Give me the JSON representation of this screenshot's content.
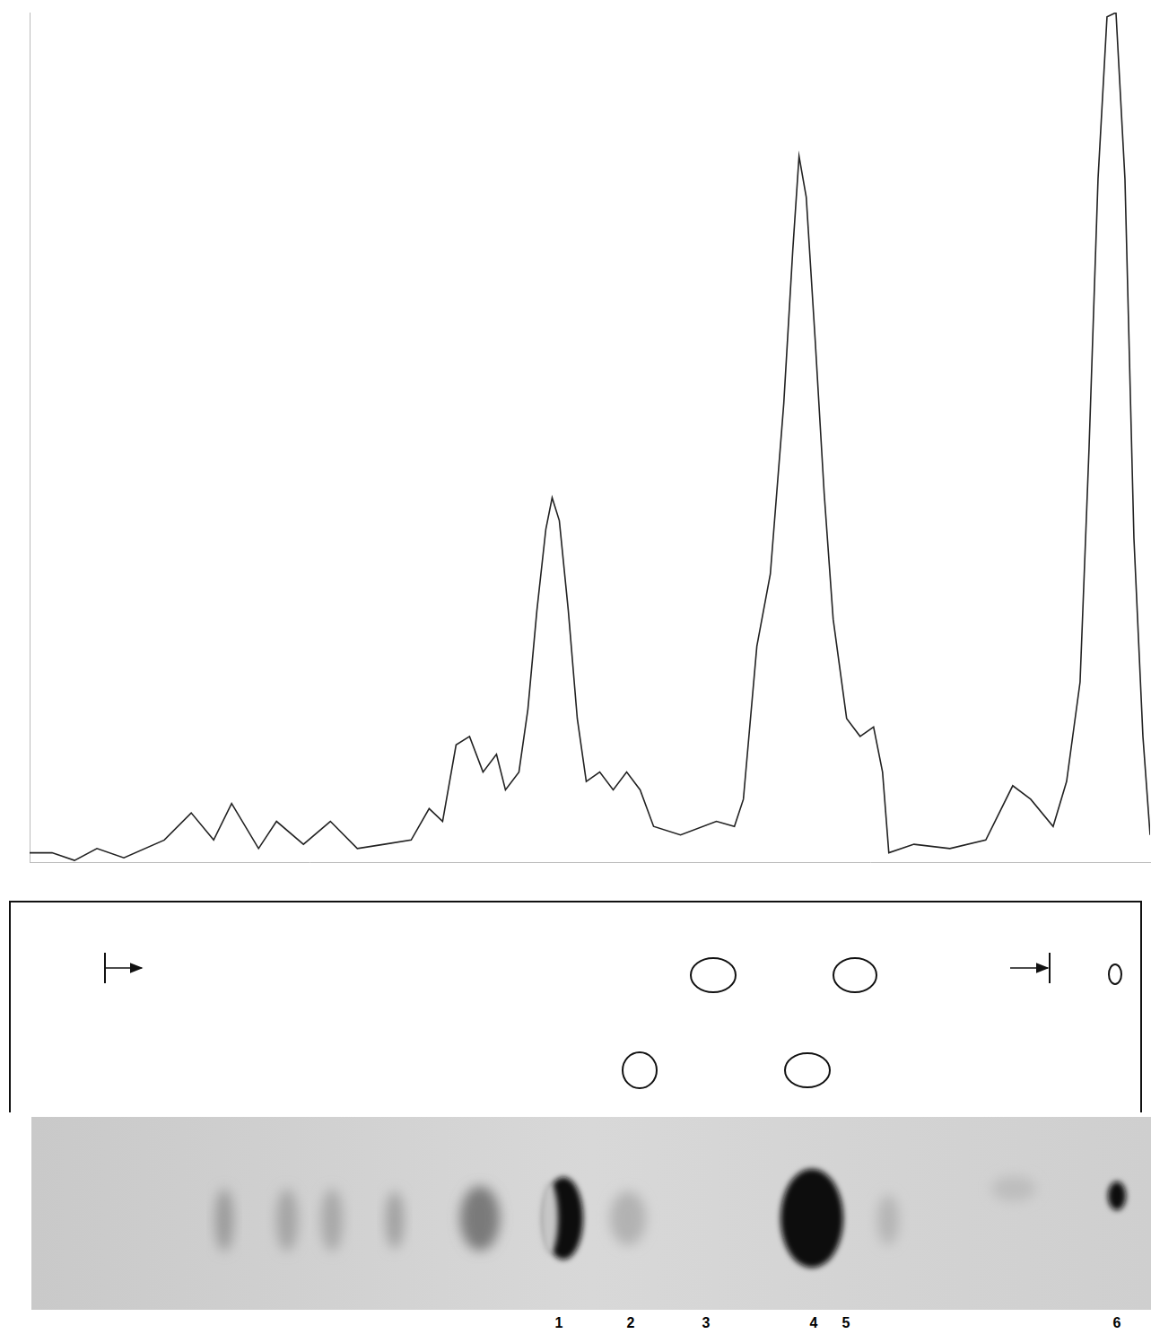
{
  "chart_data": {
    "type": "line",
    "x": [
      35,
      60,
      85,
      110,
      140,
      185,
      215,
      240,
      260,
      290,
      310,
      340,
      370,
      400,
      430,
      460,
      480,
      495,
      510,
      525,
      540,
      555,
      565,
      580,
      590,
      600,
      610,
      617,
      625,
      635,
      645,
      655,
      670,
      685,
      700,
      715,
      730,
      760,
      800,
      820,
      830,
      845,
      860,
      875,
      885,
      892,
      900,
      910,
      920,
      930,
      945,
      960,
      975,
      985,
      992,
      1020,
      1060,
      1100,
      1130,
      1150,
      1175,
      1190,
      1205,
      1215,
      1225,
      1235,
      1245,
      1255,
      1265,
      1275,
      1283
    ],
    "values": [
      1.1,
      1.1,
      0.2,
      1.6,
      0.5,
      2.6,
      5.8,
      2.6,
      6.9,
      1.6,
      4.8,
      2.1,
      4.8,
      1.6,
      2.1,
      2.6,
      6.3,
      4.8,
      13.8,
      14.8,
      10.6,
      12.7,
      8.5,
      10.6,
      18.0,
      29.6,
      39.2,
      42.9,
      40.2,
      29.6,
      16.9,
      9.5,
      10.6,
      8.5,
      10.6,
      8.5,
      4.2,
      3.2,
      4.8,
      4.2,
      7.4,
      25.4,
      33.9,
      54.0,
      72.0,
      83.1,
      78.3,
      61.4,
      43.4,
      28.6,
      16.9,
      14.8,
      15.9,
      10.6,
      1.1,
      2.1,
      1.6,
      2.6,
      9.0,
      7.4,
      4.2,
      9.5,
      21.2,
      48.7,
      80.4,
      99.5,
      100,
      80.4,
      38.1,
      14.8,
      3.2
    ],
    "color": "#222222",
    "xlim": [
      35,
      1283
    ],
    "ylim": [
      0,
      100
    ],
    "grid": false,
    "tick_labels": false,
    "marker": "none",
    "line_style": "solid"
  },
  "strip": {
    "spot_labels": [
      "1",
      "2",
      "3",
      "4",
      "5",
      "6"
    ]
  }
}
